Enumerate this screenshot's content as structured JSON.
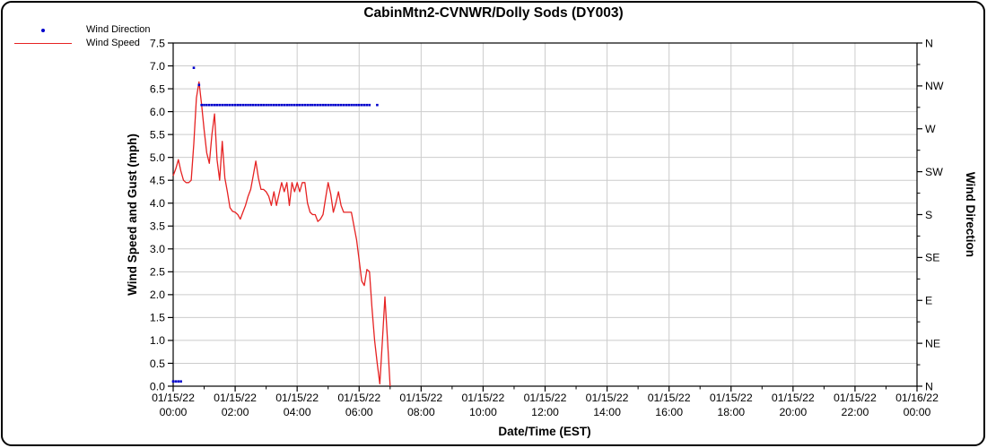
{
  "title": "CabinMtn2-CVNWR/Dolly Sods (DY003)",
  "legend": [
    {
      "label": "Wind Direction",
      "marker": "dot",
      "color": "#0000cc"
    },
    {
      "label": "Wind Speed",
      "marker": "line",
      "color": "#e62222"
    }
  ],
  "colors": {
    "wind_speed_line": "#e62222",
    "wind_direction_dot": "#0000cc",
    "gridline": "#cccccc",
    "axis": "#000000"
  },
  "chart_data": {
    "type": "line",
    "title": "CabinMtn2-CVNWR/Dolly Sods (DY003)",
    "xlabel": "Date/Time (EST)",
    "ylabel_left": "Wind Speed and Gust (mph)",
    "ylabel_right": "Wind Direction",
    "x_unit": "minutes since 01/15/22 00:00 EST",
    "xlim": [
      0,
      1440
    ],
    "ylim_left": [
      0,
      7.5
    ],
    "ylim_right": [
      0,
      360
    ],
    "grid": true,
    "legend_position": "top-left",
    "x_ticks": [
      {
        "t": 0,
        "date": "01/15/22",
        "time": "00:00"
      },
      {
        "t": 120,
        "date": "01/15/22",
        "time": "02:00"
      },
      {
        "t": 240,
        "date": "01/15/22",
        "time": "04:00"
      },
      {
        "t": 360,
        "date": "01/15/22",
        "time": "06:00"
      },
      {
        "t": 480,
        "date": "01/15/22",
        "time": "08:00"
      },
      {
        "t": 600,
        "date": "01/15/22",
        "time": "10:00"
      },
      {
        "t": 720,
        "date": "01/15/22",
        "time": "12:00"
      },
      {
        "t": 840,
        "date": "01/15/22",
        "time": "14:00"
      },
      {
        "t": 960,
        "date": "01/15/22",
        "time": "16:00"
      },
      {
        "t": 1080,
        "date": "01/15/22",
        "time": "18:00"
      },
      {
        "t": 1200,
        "date": "01/15/22",
        "time": "20:00"
      },
      {
        "t": 1320,
        "date": "01/15/22",
        "time": "22:00"
      },
      {
        "t": 1440,
        "date": "01/16/22",
        "time": "00:00"
      }
    ],
    "y_ticks_left": [
      {
        "v": 0.0,
        "label": "0.0"
      },
      {
        "v": 0.5,
        "label": "0.5"
      },
      {
        "v": 1.0,
        "label": "1.0"
      },
      {
        "v": 1.5,
        "label": "1.5"
      },
      {
        "v": 2.0,
        "label": "2.0"
      },
      {
        "v": 2.5,
        "label": "2.5"
      },
      {
        "v": 3.0,
        "label": "3.0"
      },
      {
        "v": 3.5,
        "label": "3.5"
      },
      {
        "v": 4.0,
        "label": "4.0"
      },
      {
        "v": 4.5,
        "label": "4.5"
      },
      {
        "v": 5.0,
        "label": "5.0"
      },
      {
        "v": 5.5,
        "label": "5.5"
      },
      {
        "v": 6.0,
        "label": "6.0"
      },
      {
        "v": 6.5,
        "label": "6.5"
      },
      {
        "v": 7.0,
        "label": "7.0"
      },
      {
        "v": 7.5,
        "label": "7.5"
      }
    ],
    "y_ticks_right": [
      {
        "v": 360,
        "label": "N"
      },
      {
        "v": 315,
        "label": "NW"
      },
      {
        "v": 270,
        "label": "W"
      },
      {
        "v": 225,
        "label": "SW"
      },
      {
        "v": 180,
        "label": "S"
      },
      {
        "v": 135,
        "label": "SE"
      },
      {
        "v": 90,
        "label": "E"
      },
      {
        "v": 45,
        "label": "NE"
      },
      {
        "v": 0,
        "label": "N"
      }
    ],
    "series": [
      {
        "name": "Wind Speed",
        "axis": "left",
        "style": "line",
        "color": "#e62222",
        "points": [
          [
            0,
            4.6
          ],
          [
            5,
            4.75
          ],
          [
            10,
            4.95
          ],
          [
            15,
            4.7
          ],
          [
            20,
            4.5
          ],
          [
            25,
            4.45
          ],
          [
            30,
            4.45
          ],
          [
            35,
            4.5
          ],
          [
            40,
            5.3
          ],
          [
            45,
            6.3
          ],
          [
            50,
            6.65
          ],
          [
            55,
            6.15
          ],
          [
            60,
            5.6
          ],
          [
            65,
            5.1
          ],
          [
            70,
            4.87
          ],
          [
            75,
            5.5
          ],
          [
            80,
            5.95
          ],
          [
            85,
            4.95
          ],
          [
            90,
            4.5
          ],
          [
            95,
            5.35
          ],
          [
            100,
            4.55
          ],
          [
            105,
            4.25
          ],
          [
            110,
            3.9
          ],
          [
            115,
            3.82
          ],
          [
            120,
            3.8
          ],
          [
            125,
            3.75
          ],
          [
            130,
            3.65
          ],
          [
            135,
            3.8
          ],
          [
            140,
            3.95
          ],
          [
            145,
            4.15
          ],
          [
            150,
            4.3
          ],
          [
            155,
            4.6
          ],
          [
            160,
            4.92
          ],
          [
            165,
            4.55
          ],
          [
            170,
            4.3
          ],
          [
            175,
            4.3
          ],
          [
            180,
            4.25
          ],
          [
            185,
            4.15
          ],
          [
            190,
            3.95
          ],
          [
            195,
            4.25
          ],
          [
            200,
            3.95
          ],
          [
            205,
            4.2
          ],
          [
            210,
            4.45
          ],
          [
            215,
            4.25
          ],
          [
            220,
            4.45
          ],
          [
            225,
            3.95
          ],
          [
            230,
            4.45
          ],
          [
            235,
            4.25
          ],
          [
            240,
            4.45
          ],
          [
            245,
            4.25
          ],
          [
            250,
            4.45
          ],
          [
            255,
            4.45
          ],
          [
            260,
            4.0
          ],
          [
            265,
            3.8
          ],
          [
            270,
            3.75
          ],
          [
            275,
            3.75
          ],
          [
            280,
            3.6
          ],
          [
            285,
            3.65
          ],
          [
            290,
            3.75
          ],
          [
            295,
            4.1
          ],
          [
            300,
            4.45
          ],
          [
            305,
            4.2
          ],
          [
            310,
            3.8
          ],
          [
            315,
            4.0
          ],
          [
            320,
            4.25
          ],
          [
            325,
            3.95
          ],
          [
            330,
            3.8
          ],
          [
            335,
            3.8
          ],
          [
            340,
            3.8
          ],
          [
            345,
            3.8
          ],
          [
            350,
            3.5
          ],
          [
            355,
            3.2
          ],
          [
            360,
            2.75
          ],
          [
            365,
            2.3
          ],
          [
            370,
            2.2
          ],
          [
            375,
            2.55
          ],
          [
            380,
            2.5
          ],
          [
            385,
            1.7
          ],
          [
            390,
            1.0
          ],
          [
            395,
            0.5
          ],
          [
            400,
            0.05
          ],
          [
            405,
            1.0
          ],
          [
            410,
            1.95
          ],
          [
            415,
            1.0
          ],
          [
            420,
            0.0
          ]
        ]
      },
      {
        "name": "Wind Direction",
        "axis": "right",
        "style": "scatter",
        "color": "#0000cc",
        "points": [
          [
            0,
            5
          ],
          [
            5,
            5
          ],
          [
            10,
            5
          ],
          [
            15,
            5
          ],
          [
            40,
            334
          ],
          [
            50,
            316
          ],
          [
            55,
            295
          ],
          [
            60,
            295
          ],
          [
            65,
            295
          ],
          [
            70,
            295
          ],
          [
            75,
            295
          ],
          [
            80,
            295
          ],
          [
            85,
            295
          ],
          [
            90,
            295
          ],
          [
            95,
            295
          ],
          [
            100,
            295
          ],
          [
            105,
            295
          ],
          [
            110,
            295
          ],
          [
            115,
            295
          ],
          [
            120,
            295
          ],
          [
            125,
            295
          ],
          [
            130,
            295
          ],
          [
            135,
            295
          ],
          [
            140,
            295
          ],
          [
            145,
            295
          ],
          [
            150,
            295
          ],
          [
            155,
            295
          ],
          [
            160,
            295
          ],
          [
            165,
            295
          ],
          [
            170,
            295
          ],
          [
            175,
            295
          ],
          [
            180,
            295
          ],
          [
            185,
            295
          ],
          [
            190,
            295
          ],
          [
            195,
            295
          ],
          [
            200,
            295
          ],
          [
            205,
            295
          ],
          [
            210,
            295
          ],
          [
            215,
            295
          ],
          [
            220,
            295
          ],
          [
            225,
            295
          ],
          [
            230,
            295
          ],
          [
            235,
            295
          ],
          [
            240,
            295
          ],
          [
            245,
            295
          ],
          [
            250,
            295
          ],
          [
            255,
            295
          ],
          [
            260,
            295
          ],
          [
            265,
            295
          ],
          [
            270,
            295
          ],
          [
            275,
            295
          ],
          [
            280,
            295
          ],
          [
            285,
            295
          ],
          [
            290,
            295
          ],
          [
            295,
            295
          ],
          [
            300,
            295
          ],
          [
            305,
            295
          ],
          [
            310,
            295
          ],
          [
            315,
            295
          ],
          [
            320,
            295
          ],
          [
            325,
            295
          ],
          [
            330,
            295
          ],
          [
            335,
            295
          ],
          [
            340,
            295
          ],
          [
            345,
            295
          ],
          [
            350,
            295
          ],
          [
            355,
            295
          ],
          [
            360,
            295
          ],
          [
            365,
            295
          ],
          [
            370,
            295
          ],
          [
            375,
            295
          ],
          [
            380,
            295
          ],
          [
            395,
            295
          ]
        ]
      }
    ]
  }
}
